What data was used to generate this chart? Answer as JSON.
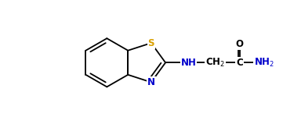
{
  "bg_color": "#ffffff",
  "line_color": "#000000",
  "atom_color_S": "#daa000",
  "atom_color_N": "#0000cc",
  "bond_lw": 1.3,
  "font_size": 8.5,
  "fig_width": 3.61,
  "fig_height": 1.59,
  "dpi": 100,
  "xlim": [
    -3.8,
    5.2
  ],
  "ylim": [
    -1.8,
    1.8
  ]
}
